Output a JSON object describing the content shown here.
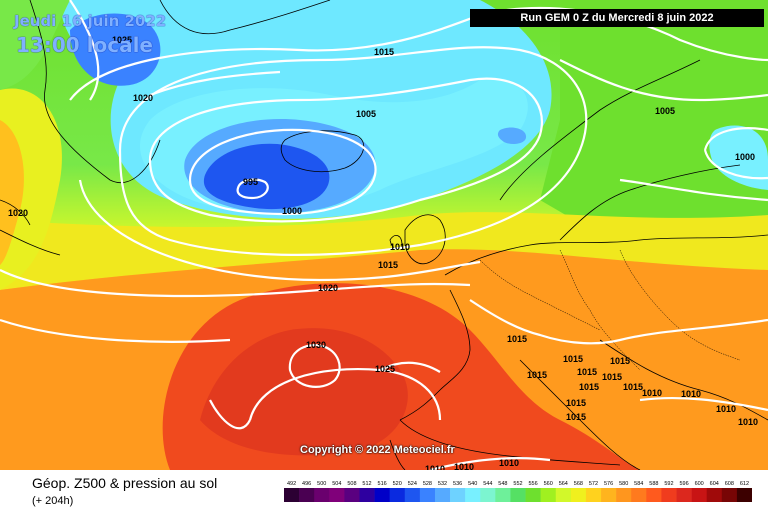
{
  "header": {
    "valid_date": "Jeudi 16 juin 2022",
    "valid_time": "13:00 locale",
    "run_info": "Run GEM 0 Z du Mercredi 8 juin 2022"
  },
  "copyright": "Copyright © 2022 Meteociel.fr",
  "footer": {
    "product_title": "Géop. Z500 & pression au sol",
    "forecast_hours": "(+ 204h)"
  },
  "legend": {
    "values": [
      "492",
      "496",
      "500",
      "504",
      "508",
      "512",
      "516",
      "520",
      "524",
      "528",
      "532",
      "536",
      "540",
      "544",
      "548",
      "552",
      "556",
      "560",
      "564",
      "568",
      "572",
      "576",
      "580",
      "584",
      "588",
      "592",
      "596",
      "600",
      "604",
      "608",
      "612"
    ],
    "colors": [
      "#2c0033",
      "#4a0052",
      "#6a006e",
      "#80007a",
      "#5a0080",
      "#2e00a0",
      "#0000c8",
      "#0a2ae0",
      "#1e56f0",
      "#3a82ff",
      "#56aaff",
      "#6ed2ff",
      "#78f0ff",
      "#7cf5d0",
      "#6ef09a",
      "#55e064",
      "#6ee02e",
      "#a0f020",
      "#d2f82a",
      "#f0f01e",
      "#ffd21e",
      "#ffb41e",
      "#ff961e",
      "#ff7a1e",
      "#ff5a1e",
      "#f03c1e",
      "#dc281e",
      "#c81414",
      "#a00a0a",
      "#780505",
      "#3c0000"
    ]
  },
  "isobars": {
    "labels": [
      {
        "text": "1025"
      },
      {
        "text": "1020"
      },
      {
        "text": "1015"
      },
      {
        "text": "1005"
      },
      {
        "text": "995"
      },
      {
        "text": "1000"
      },
      {
        "text": "1010"
      },
      {
        "text": "1015"
      },
      {
        "text": "1020"
      },
      {
        "text": "1030"
      },
      {
        "text": "1025"
      },
      {
        "text": "1015"
      },
      {
        "text": "1015"
      },
      {
        "text": "1015"
      },
      {
        "text": "1015"
      },
      {
        "text": "1015"
      },
      {
        "text": "1015"
      },
      {
        "text": "1015"
      },
      {
        "text": "1015"
      },
      {
        "text": "1015"
      },
      {
        "text": "1015"
      },
      {
        "text": "1010"
      },
      {
        "text": "1010"
      },
      {
        "text": "1010"
      },
      {
        "text": "1010"
      },
      {
        "text": "1010"
      },
      {
        "text": "1010"
      },
      {
        "text": "1010"
      },
      {
        "text": "1005"
      },
      {
        "text": "1000"
      },
      {
        "text": "1020"
      }
    ]
  }
}
